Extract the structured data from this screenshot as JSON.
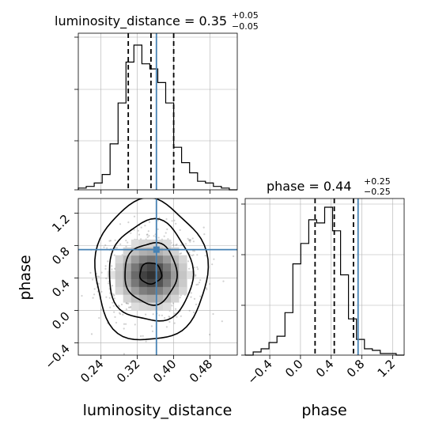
{
  "chart_data": [
    {
      "type": "histogram",
      "parameter": "luminosity_distance",
      "title_name": "luminosity_distance",
      "title_value": "0.35",
      "title_plus": "+0.05",
      "title_minus": "−0.05",
      "xlim": [
        0.19,
        0.54
      ],
      "bins": [
        0.19,
        0.2075,
        0.225,
        0.2425,
        0.26,
        0.2775,
        0.295,
        0.3125,
        0.33,
        0.3475,
        0.365,
        0.3825,
        0.4,
        0.4175,
        0.435,
        0.4525,
        0.47,
        0.4875,
        0.505,
        0.5225,
        0.54
      ],
      "counts": [
        0.01,
        0.02,
        0.04,
        0.09,
        0.27,
        0.51,
        0.75,
        0.85,
        0.74,
        0.71,
        0.63,
        0.51,
        0.25,
        0.16,
        0.1,
        0.05,
        0.04,
        0.02,
        0.01,
        0.0
      ],
      "quantiles": [
        0.3,
        0.35,
        0.4
      ],
      "truth": 0.362,
      "grid": true
    },
    {
      "type": "scatter-density-contour",
      "x_parameter": "luminosity_distance",
      "y_parameter": "phase",
      "xlim": [
        0.19,
        0.54
      ],
      "ylim": [
        -0.55,
        1.38
      ],
      "xticks": [
        "0.24",
        "0.32",
        "0.40",
        "0.48"
      ],
      "yticks": [
        "−0.4",
        "0.0",
        "0.4",
        "0.8",
        "1.2"
      ],
      "xlabel": "luminosity_distance",
      "ylabel": "phase",
      "center": [
        0.35,
        0.44
      ],
      "sigma": [
        0.05,
        0.25
      ],
      "truth": [
        0.362,
        0.75
      ],
      "contours": [
        {
          "level": "outer",
          "rx": [
            0.125,
            0.122
          ],
          "ry": [
            0.92,
            0.82
          ]
        },
        {
          "level": "middle",
          "rx": [
            0.093,
            0.092
          ],
          "ry": [
            0.66,
            0.58
          ]
        },
        {
          "level": "inner",
          "rx": [
            0.058,
            0.057
          ],
          "ry": [
            0.4,
            0.36
          ]
        },
        {
          "level": "core",
          "rx": [
            0.025,
            0.023
          ],
          "ry": [
            0.15,
            0.11
          ]
        }
      ],
      "grid": true
    },
    {
      "type": "histogram",
      "parameter": "phase",
      "title_name": "phase",
      "title_value": "0.44",
      "title_plus": "+0.25",
      "title_minus": "−0.25",
      "xlim": [
        -0.72,
        1.35
      ],
      "xticks": [
        "−0.4",
        "0.0",
        "0.4",
        "0.8",
        "1.2"
      ],
      "xlabel": "phase",
      "bins": [
        -0.72,
        -0.6165,
        -0.513,
        -0.4095,
        -0.306,
        -0.2025,
        -0.099,
        0.0045,
        0.108,
        0.2115,
        0.315,
        0.4185,
        0.522,
        0.6255,
        0.729,
        0.8325,
        0.936,
        1.0395,
        1.143,
        1.2465,
        1.35
      ],
      "counts": [
        0.0,
        0.02,
        0.04,
        0.08,
        0.12,
        0.27,
        0.58,
        0.71,
        0.86,
        0.84,
        0.94,
        0.79,
        0.51,
        0.23,
        0.1,
        0.04,
        0.03,
        0.01,
        0.01,
        0.0
      ],
      "quantiles": [
        0.19,
        0.44,
        0.69
      ],
      "truth": 0.75,
      "grid": true
    }
  ],
  "colors": {
    "truth": "#4682b4",
    "hist": "#000000",
    "grid": "#b0b0b0",
    "points": "#7a7a7a"
  }
}
